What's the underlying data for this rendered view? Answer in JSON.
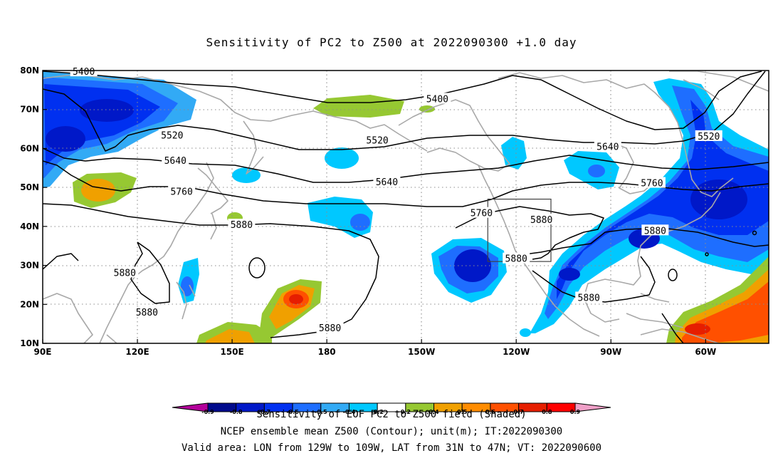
{
  "title": "Sensitivity of PC2 to Z500 at 2022090300 +1.0 day",
  "map": {
    "lon_labels": [
      {
        "lon": 90,
        "text": "90E"
      },
      {
        "lon": 120,
        "text": "120E"
      },
      {
        "lon": 150,
        "text": "150E"
      },
      {
        "lon": 180,
        "text": "180"
      },
      {
        "lon": 210,
        "text": "150W"
      },
      {
        "lon": 240,
        "text": "120W"
      },
      {
        "lon": 270,
        "text": "90W"
      },
      {
        "lon": 300,
        "text": "60W"
      }
    ],
    "lat_labels": [
      {
        "lat": 80,
        "text": "80N"
      },
      {
        "lat": 70,
        "text": "70N"
      },
      {
        "lat": 60,
        "text": "60N"
      },
      {
        "lat": 50,
        "text": "50N"
      },
      {
        "lat": 40,
        "text": "40N"
      },
      {
        "lat": 30,
        "text": "30N"
      },
      {
        "lat": 20,
        "text": "20N"
      },
      {
        "lat": 10,
        "text": "10N"
      }
    ],
    "lon_range": [
      90,
      320
    ],
    "lat_range": [
      10,
      80
    ],
    "grid": "dotted",
    "valid_box": {
      "lon": [
        231,
        251
      ],
      "lat": [
        31,
        47
      ]
    },
    "contour_labels": [
      {
        "text": "5400",
        "lon": 103,
        "lat": 79.8
      },
      {
        "text": "5400",
        "lon": 215,
        "lat": 72.8
      },
      {
        "text": "5520",
        "lon": 131,
        "lat": 63.5
      },
      {
        "text": "5520",
        "lon": 196,
        "lat": 62.2
      },
      {
        "text": "5520",
        "lon": 301,
        "lat": 63.2
      },
      {
        "text": "5640",
        "lon": 132,
        "lat": 57.0
      },
      {
        "text": "5640",
        "lon": 199,
        "lat": 51.5
      },
      {
        "text": "5640",
        "lon": 269,
        "lat": 60.5
      },
      {
        "text": "5760",
        "lon": 134,
        "lat": 49.0
      },
      {
        "text": "5760",
        "lon": 229,
        "lat": 43.5
      },
      {
        "text": "5760",
        "lon": 283,
        "lat": 51.2
      },
      {
        "text": "5880",
        "lon": 153,
        "lat": 40.5
      },
      {
        "text": "5880",
        "lon": 248,
        "lat": 41.8
      },
      {
        "text": "5880",
        "lon": 284,
        "lat": 39.0
      },
      {
        "text": "5880",
        "lon": 116,
        "lat": 28.2
      },
      {
        "text": "5880",
        "lon": 123,
        "lat": 18.0
      },
      {
        "text": "5880",
        "lon": 181,
        "lat": 14.0
      },
      {
        "text": "5880",
        "lon": 240,
        "lat": 31.8
      },
      {
        "text": "5880",
        "lon": 263,
        "lat": 21.8
      }
    ]
  },
  "colorbar": {
    "colors": [
      "#b4009b",
      "#000a8c",
      "#0018c8",
      "#0030f0",
      "#1e6eff",
      "#32aaf5",
      "#00c8ff",
      "#ffffff",
      "#96c832",
      "#f0a000",
      "#ff8c00",
      "#ff5000",
      "#e61e00",
      "#ff0000",
      "#f0a0c8"
    ],
    "labels": [
      "-0.9",
      "-0.8",
      "-0.7",
      "-0.6",
      "-0.5",
      "-0.4",
      "-0.2",
      "0.2",
      "0.4",
      "0.5",
      "0.6",
      "0.7",
      "0.8",
      "0.9"
    ]
  },
  "footer": {
    "line1": "Sensitivity of EOF PC2 to Z500 field (Shaded)",
    "line2": "NCEP ensemble mean Z500 (Contour); unit(m); IT:2022090300",
    "line3": "Valid area: LON from 129W to 109W, LAT from 31N to 47N; VT: 2022090600"
  }
}
